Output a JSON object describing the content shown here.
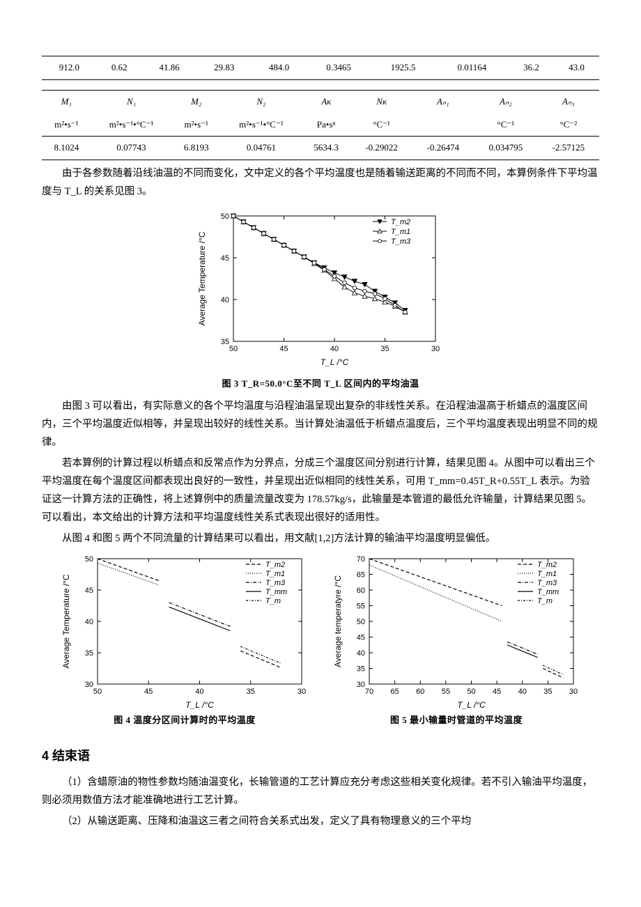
{
  "table1": {
    "row": [
      "912.0",
      "0.62",
      "41.86",
      "29.83",
      "484.0",
      "0.3465",
      "1925.5",
      "0.01164",
      "36.2",
      "43.0"
    ]
  },
  "table2": {
    "head_sym": [
      "M₁",
      "N₁",
      "M₂",
      "N₂",
      "Aᴋ",
      "Nᴋ",
      "Aₙ₁",
      "Aₙ₂",
      "Aₙ₃"
    ],
    "head_unit": [
      "m²•s⁻¹",
      "m²•s⁻¹•°C⁻¹",
      "m²•s⁻¹",
      "m²•s⁻¹•°C⁻¹",
      "Pa•sⁿ",
      "°C⁻¹",
      "",
      "°C⁻¹",
      "°C⁻²"
    ],
    "row": [
      "8.1024",
      "0.07743",
      "6.8193",
      "0.04761",
      "5634.3",
      "-0.29022",
      "-0.26474",
      "0.034795",
      "-2.57125"
    ]
  },
  "para1": "由于各参数随着沿线油温的不同而变化，文中定义的各个平均温度也是随着输送距离的不同而不同，本算例条件下平均温度与 T_L 的关系见图 3。",
  "fig3": {
    "caption": "图 3  T_R=50.0°C至不同 T_L 区间内的平均油温",
    "ylabel": "Average Temperature /°C",
    "xlabel": "T_L /°C",
    "x_ticks": [
      "50",
      "45",
      "40",
      "35",
      "30"
    ],
    "y_ticks": [
      "35",
      "40",
      "45",
      "50"
    ],
    "x_range": [
      50,
      30
    ],
    "y_range": [
      35,
      50
    ],
    "legend": [
      "T_m2",
      "T_m1",
      "T_m3"
    ],
    "marker_fill": [
      "#000",
      "#fff",
      "#fff"
    ],
    "marker_shape": [
      "tri-down",
      "tri-up",
      "circle"
    ],
    "series": {
      "Tm2": [
        [
          50,
          50
        ],
        [
          49,
          49.3
        ],
        [
          48,
          48.6
        ],
        [
          47,
          47.9
        ],
        [
          46,
          47.2
        ],
        [
          45,
          46.5
        ],
        [
          44,
          45.8
        ],
        [
          43,
          45.1
        ],
        [
          42,
          44.4
        ],
        [
          41,
          43.8
        ],
        [
          40,
          43.2
        ],
        [
          39,
          42.7
        ],
        [
          38,
          42.2
        ],
        [
          37,
          41.8
        ],
        [
          36,
          41.0
        ],
        [
          35,
          40.3
        ],
        [
          34,
          39.6
        ],
        [
          33,
          38.7
        ]
      ],
      "Tm1": [
        [
          50,
          50
        ],
        [
          49,
          49.3
        ],
        [
          48,
          48.6
        ],
        [
          47,
          47.9
        ],
        [
          46,
          47.2
        ],
        [
          45,
          46.5
        ],
        [
          44,
          45.8
        ],
        [
          43,
          45.1
        ],
        [
          42,
          44.3
        ],
        [
          41,
          43.5
        ],
        [
          40,
          42.5
        ],
        [
          39,
          41.5
        ],
        [
          38,
          40.8
        ],
        [
          37,
          40.4
        ],
        [
          36,
          40.1
        ],
        [
          35,
          39.7
        ],
        [
          34,
          39.2
        ],
        [
          33,
          38.5
        ]
      ],
      "Tm3": [
        [
          50,
          50
        ],
        [
          49,
          49.3
        ],
        [
          48,
          48.6
        ],
        [
          47,
          47.9
        ],
        [
          46,
          47.2
        ],
        [
          45,
          46.5
        ],
        [
          44,
          45.8
        ],
        [
          43,
          45.1
        ],
        [
          42,
          44.4
        ],
        [
          41,
          43.6
        ],
        [
          40,
          42.8
        ],
        [
          39,
          42.0
        ],
        [
          38,
          41.4
        ],
        [
          37,
          41.0
        ],
        [
          36,
          40.7
        ],
        [
          35,
          40.1
        ],
        [
          34,
          39.3
        ],
        [
          33,
          38.5
        ]
      ]
    },
    "colors": {
      "line": "#000",
      "text": "#000"
    }
  },
  "para2": "由图 3 可以看出，有实际意义的各个平均温度与沿程油温呈现出复杂的非线性关系。在沿程油温高于析蜡点的温度区间内，三个平均温度近似相等，并呈现出较好的线性关系。当计算处油温低于析蜡点温度后，三个平均温度表现出明显不同的规律。",
  "para3": "若本算例的计算过程以析蜡点和反常点作为分界点，分成三个温度区间分别进行计算，结果见图 4。从图中可以看出三个平均温度在每个温度区间都表现出良好的一致性，并呈现出近似相同的线性关系，可用 T_mm=0.45T_R+0.55T_L 表示。为验证这一计算方法的正确性，将上述算例中的质量流量改变为 178.57kg/s，此输量是本管道的最低允许输量，计算结果见图 5。可以看出，本文给出的计算方法和平均温度线性关系式表现出很好的适用性。",
  "para4": "从图 4 和图 5 两个不同流量的计算结果可以看出，用文献[1,2]方法计算的输油平均温度明显偏低。",
  "fig4": {
    "caption": "图 4 温度分区间计算时的平均温度",
    "ylabel": "Average Temperature /°C",
    "xlabel": "T_L /°C",
    "x_ticks": [
      "50",
      "45",
      "40",
      "35",
      "30"
    ],
    "y_ticks": [
      "30",
      "35",
      "40",
      "45",
      "50"
    ],
    "x_range": [
      50,
      30
    ],
    "y_range": [
      30,
      50
    ],
    "legend": [
      "T_m2",
      "T_m1",
      "T_m3",
      "T_mm",
      "T_m"
    ],
    "dash": [
      "5,3",
      "1,2",
      "5,2,1,2",
      "0",
      "3,2,1,2"
    ],
    "segments": [
      [
        [
          50,
          50
        ],
        [
          44,
          46.5
        ]
      ],
      [
        [
          50,
          49.3
        ],
        [
          44,
          45.8
        ]
      ],
      [
        [
          43,
          43
        ],
        [
          37,
          39.2
        ]
      ],
      [
        [
          43,
          42.3
        ],
        [
          37,
          38.5
        ]
      ],
      [
        [
          36,
          36
        ],
        [
          32,
          33.3
        ]
      ],
      [
        [
          36,
          35.3
        ],
        [
          32,
          32.6
        ]
      ]
    ]
  },
  "fig5": {
    "caption": "图 5 最小输量时管道的平均温度",
    "ylabel": "Average temperatyre /°C",
    "xlabel": "T_L /°C",
    "x_ticks": [
      "70",
      "65",
      "60",
      "55",
      "50",
      "45",
      "40",
      "35",
      "30"
    ],
    "y_ticks": [
      "30",
      "35",
      "40",
      "45",
      "50",
      "55",
      "60",
      "65",
      "70"
    ],
    "x_range": [
      70,
      30
    ],
    "y_range": [
      30,
      70
    ],
    "legend": [
      "T_m2",
      "T_m1",
      "T_m3",
      "T_mm",
      "T_m"
    ],
    "dash": [
      "5,3",
      "1,2",
      "5,2,1,2",
      "0",
      "3,2,1,2"
    ],
    "segments": [
      [
        [
          70,
          70
        ],
        [
          44,
          55
        ]
      ],
      [
        [
          70,
          68
        ],
        [
          44,
          50
        ]
      ],
      [
        [
          43,
          43.5
        ],
        [
          37,
          39.5
        ]
      ],
      [
        [
          43,
          42.5
        ],
        [
          37,
          38.5
        ]
      ],
      [
        [
          36,
          36
        ],
        [
          32,
          33
        ]
      ],
      [
        [
          36,
          35
        ],
        [
          32,
          32
        ]
      ]
    ]
  },
  "section_heading": "4 结束语",
  "bullet1": "（1）含蜡原油的物性参数均随油温变化，长输管道的工艺计算应充分考虑这些相关变化规律。若不引入输油平均温度，则必须用数值方法才能准确地进行工艺计算。",
  "bullet2": "（2）从输送距离、压降和油温这三者之间符合关系式出发，定义了具有物理意义的三个平均"
}
